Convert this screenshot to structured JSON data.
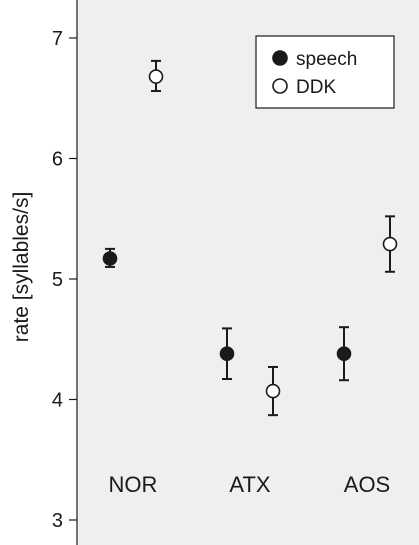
{
  "chart_data": {
    "type": "scatter",
    "title": "",
    "xlabel": "",
    "ylabel": "rate [syllables/s]",
    "ylim": [
      2.83,
      7.23
    ],
    "yticks": [
      3,
      4,
      5,
      6,
      7
    ],
    "categories": [
      "NOR",
      "ATX",
      "AOS"
    ],
    "grid": false,
    "legend_position": "top-right",
    "background": "#efefef",
    "series": [
      {
        "name": "speech",
        "marker": "filled-circle",
        "color": "#1a1a1a",
        "values": [
          5.17,
          4.38,
          4.38
        ],
        "err_low": [
          5.1,
          4.17,
          4.16
        ],
        "err_high": [
          5.25,
          4.59,
          4.6
        ]
      },
      {
        "name": "DDK",
        "marker": "open-circle",
        "color": "#1a1a1a",
        "values": [
          6.68,
          4.07,
          5.29
        ],
        "err_low": [
          6.56,
          3.87,
          5.06
        ],
        "err_high": [
          6.81,
          4.27,
          5.52
        ]
      }
    ]
  }
}
